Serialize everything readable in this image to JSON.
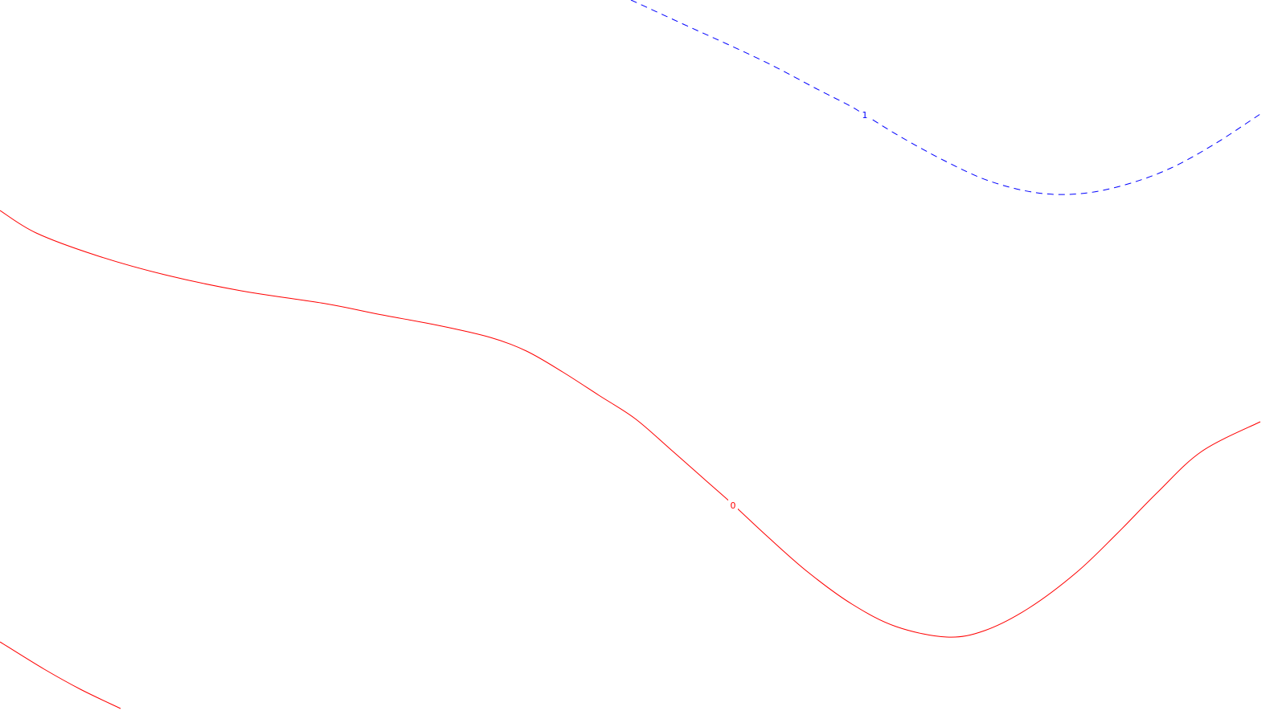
{
  "chart_data": {
    "type": "contour",
    "title": "",
    "xlabel": "",
    "ylabel": "",
    "grid": false,
    "legend": "none",
    "colors": {
      "background": "#ffffff",
      "level_0": "#ff0000",
      "level_1": "#0000ff"
    },
    "contours": [
      {
        "level": "0",
        "color": "#ff0000",
        "line_style": "solid",
        "paths": [
          [
            [
              0,
              262
            ],
            [
              45,
              290
            ],
            [
              120,
              318
            ],
            [
              205,
              342
            ],
            [
              300,
              362
            ],
            [
              405,
              378
            ],
            [
              470,
              391
            ],
            [
              545,
              405
            ],
            [
              610,
              420
            ],
            [
              655,
              437
            ],
            [
              700,
              463
            ],
            [
              745,
              492
            ],
            [
              790,
              521
            ],
            [
              835,
              560
            ],
            [
              878,
              598
            ],
            [
              912,
              628
            ],
            [
              955,
              668
            ],
            [
              1005,
              712
            ],
            [
              1060,
              752
            ],
            [
              1115,
              780
            ],
            [
              1178,
              793
            ],
            [
              1225,
              785
            ],
            [
              1280,
              757
            ],
            [
              1340,
              712
            ],
            [
              1390,
              664
            ],
            [
              1440,
              613
            ],
            [
              1495,
              562
            ],
            [
              1568,
              525
            ]
          ],
          [
            [
              0,
              799
            ],
            [
              55,
              833
            ],
            [
              100,
              858
            ],
            [
              150,
              882
            ]
          ]
        ],
        "label": {
          "text": "0",
          "x": 912,
          "y": 629
        }
      },
      {
        "level": "1",
        "color": "#0000ff",
        "line_style": "dashed",
        "paths": [
          [
            [
              785,
              0
            ],
            [
              850,
              30
            ],
            [
              905,
              55
            ],
            [
              960,
              81
            ],
            [
              1015,
              110
            ],
            [
              1058,
              132
            ],
            [
              1076,
              143
            ],
            [
              1120,
              170
            ],
            [
              1175,
              200
            ],
            [
              1230,
              225
            ],
            [
              1290,
              240
            ],
            [
              1345,
              241
            ],
            [
              1400,
              230
            ],
            [
              1455,
              210
            ],
            [
              1510,
              180
            ],
            [
              1568,
              142
            ]
          ]
        ],
        "label": {
          "text": "1",
          "x": 1076,
          "y": 143
        }
      }
    ]
  }
}
